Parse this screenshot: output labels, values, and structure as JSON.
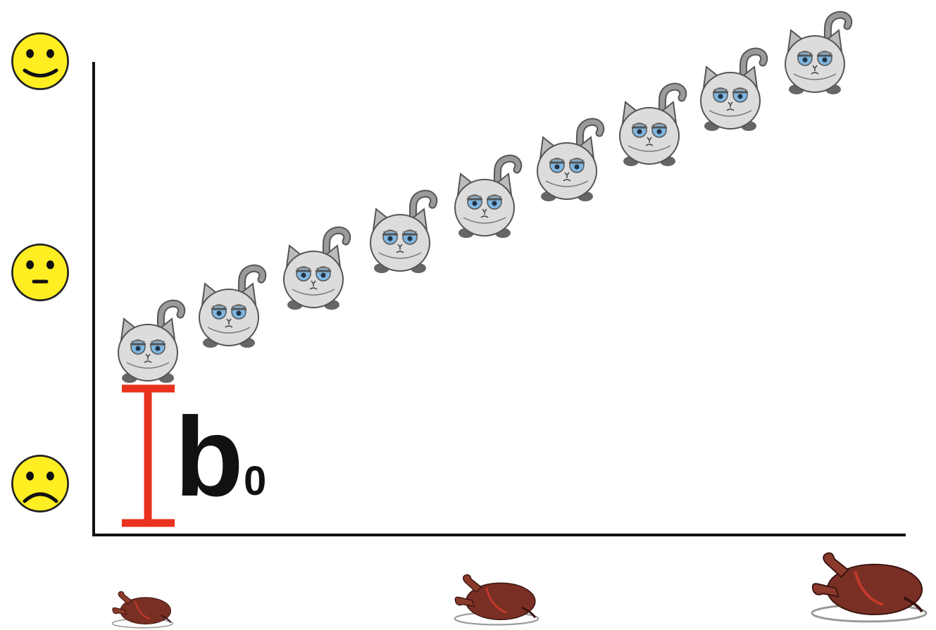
{
  "intercept_label": {
    "symbol": "b",
    "subscript": "0"
  }
}
